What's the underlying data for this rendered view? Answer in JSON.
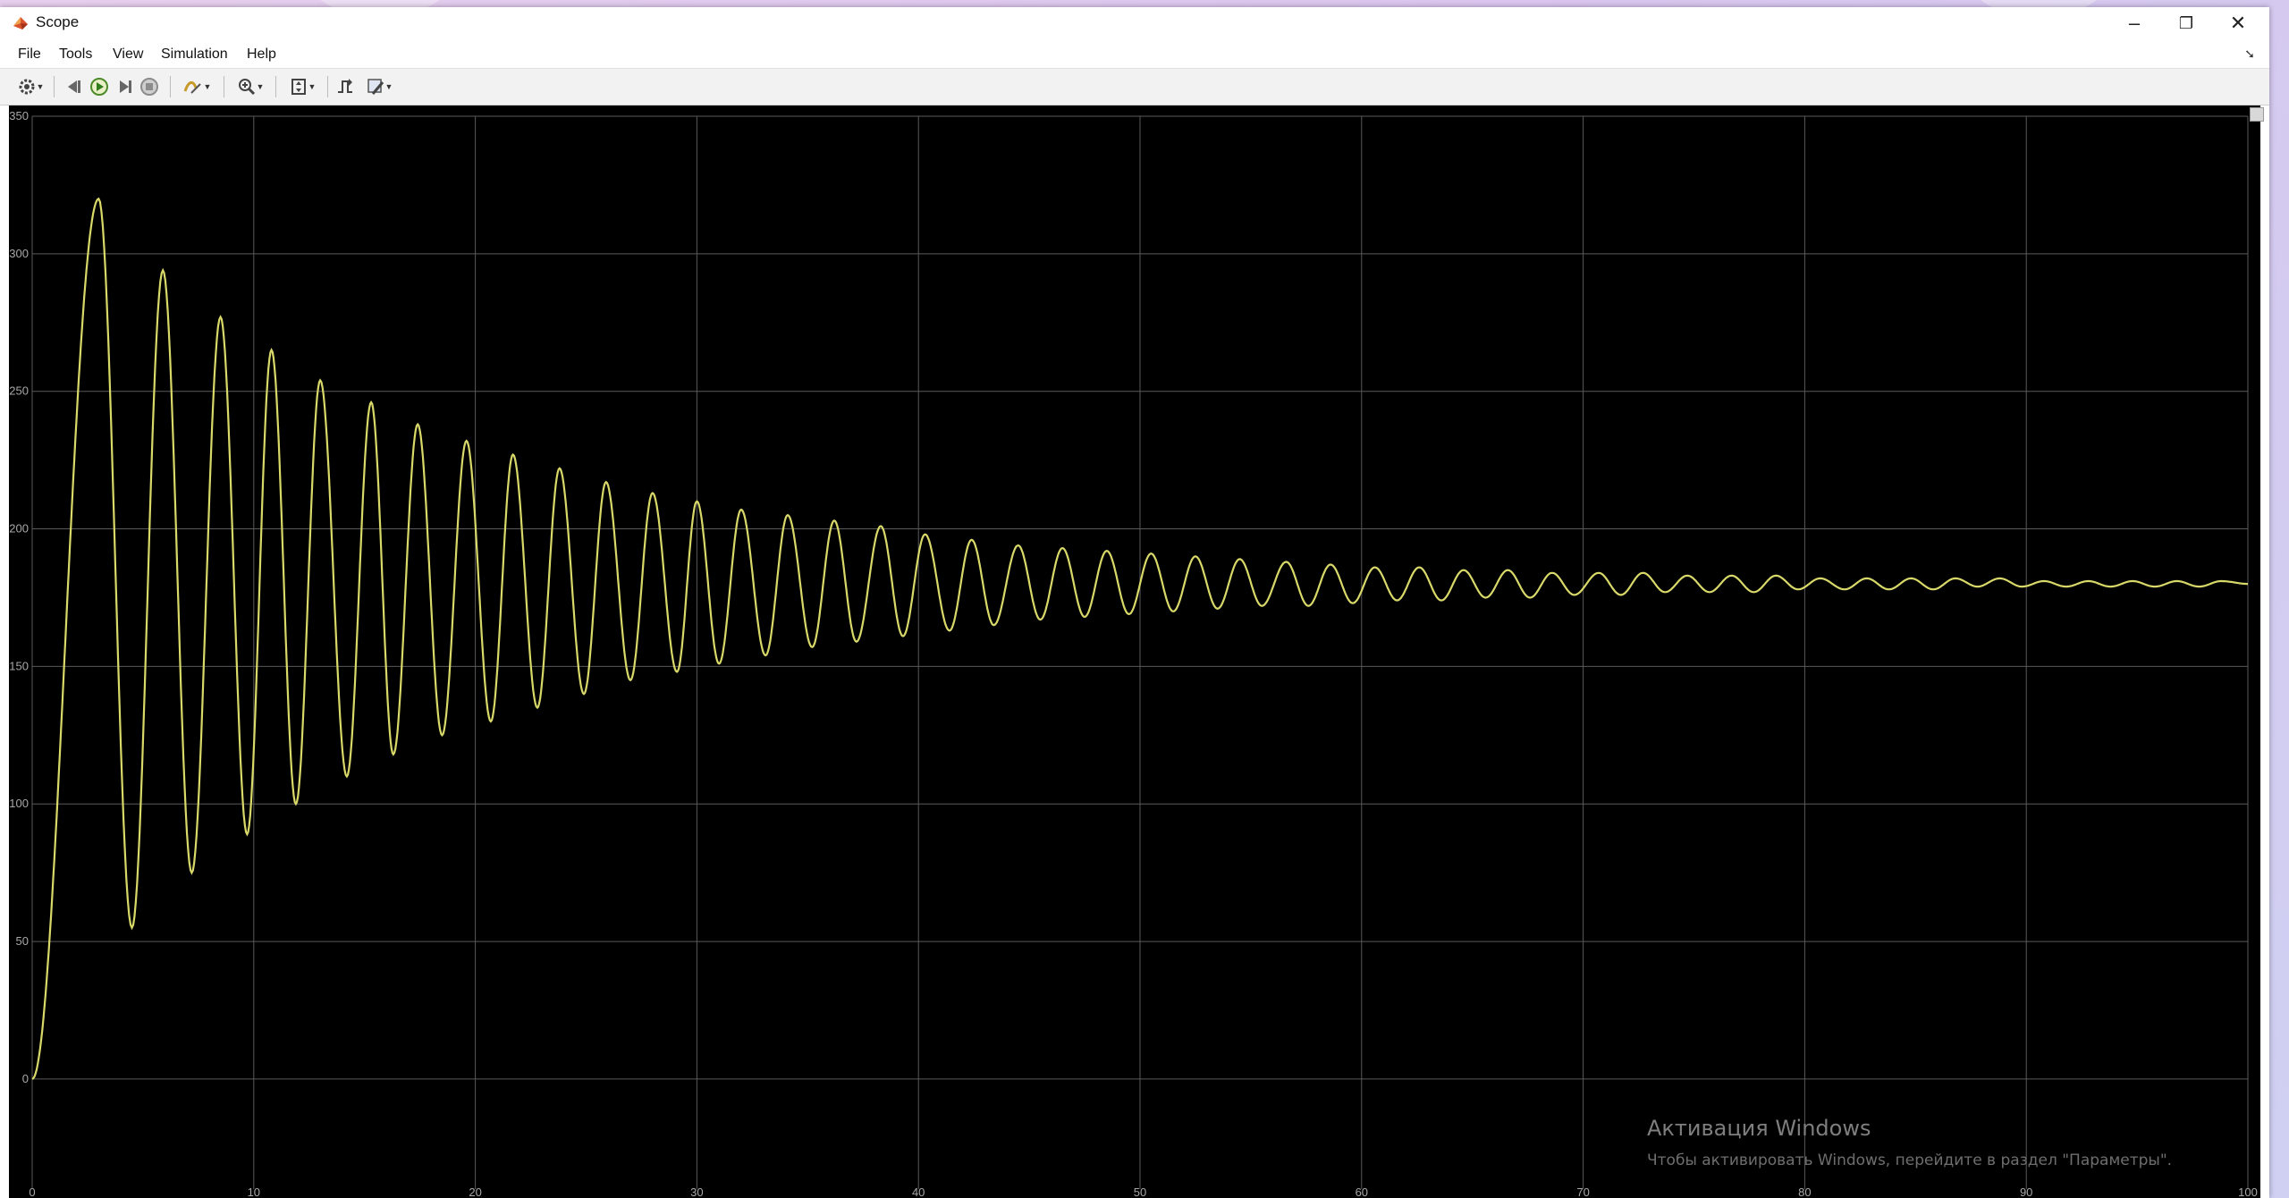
{
  "window": {
    "title": "Scope",
    "controls": {
      "minimize": "–",
      "maximize": "❐",
      "close": "✕"
    }
  },
  "menu": {
    "items": [
      "File",
      "Tools",
      "View",
      "Simulation",
      "Help"
    ],
    "pin_glyph": "➘"
  },
  "toolbar": {
    "buttons": [
      {
        "name": "settings-icon"
      },
      {
        "name": "step-back-icon"
      },
      {
        "name": "run-icon"
      },
      {
        "name": "step-forward-icon"
      },
      {
        "name": "stop-icon"
      },
      {
        "name": "highlight-icon"
      },
      {
        "name": "zoom-icon"
      },
      {
        "name": "scale-axes-icon"
      },
      {
        "name": "triggers-icon"
      },
      {
        "name": "style-icon"
      }
    ]
  },
  "colors": {
    "signal": "#d9d96a",
    "grid": "#5a5a5a",
    "axes_bg": "#000000",
    "tick_label": "#a8a8a8"
  },
  "chart_data": {
    "type": "line",
    "title": "",
    "xlabel": "",
    "ylabel": "",
    "xlim": [
      0,
      100
    ],
    "ylim": [
      -40,
      350
    ],
    "grid": true,
    "x_ticks": [
      0,
      10,
      20,
      30,
      40,
      50,
      60,
      70,
      80,
      90,
      100
    ],
    "y_ticks": [
      0,
      50,
      100,
      150,
      200,
      250,
      300,
      350
    ],
    "series": [
      {
        "name": "",
        "peaks": [
          {
            "t": 3.0,
            "v": 320
          },
          {
            "t": 4.5,
            "v": 55
          },
          {
            "t": 5.9,
            "v": 294
          },
          {
            "t": 7.2,
            "v": 75
          },
          {
            "t": 8.5,
            "v": 277
          },
          {
            "t": 9.7,
            "v": 89
          },
          {
            "t": 10.8,
            "v": 265
          },
          {
            "t": 11.9,
            "v": 100
          },
          {
            "t": 13.0,
            "v": 254
          },
          {
            "t": 14.2,
            "v": 110
          },
          {
            "t": 15.3,
            "v": 246
          },
          {
            "t": 16.3,
            "v": 118
          },
          {
            "t": 17.4,
            "v": 238
          },
          {
            "t": 18.5,
            "v": 125
          },
          {
            "t": 19.6,
            "v": 232
          },
          {
            "t": 20.7,
            "v": 130
          },
          {
            "t": 21.7,
            "v": 227
          },
          {
            "t": 22.8,
            "v": 135
          },
          {
            "t": 23.8,
            "v": 222
          },
          {
            "t": 24.9,
            "v": 140
          },
          {
            "t": 25.9,
            "v": 217
          },
          {
            "t": 27.0,
            "v": 145
          },
          {
            "t": 28.0,
            "v": 213
          },
          {
            "t": 29.1,
            "v": 148
          },
          {
            "t": 30.0,
            "v": 210
          },
          {
            "t": 31.0,
            "v": 151
          },
          {
            "t": 32.0,
            "v": 207
          },
          {
            "t": 33.1,
            "v": 154
          },
          {
            "t": 34.1,
            "v": 205
          },
          {
            "t": 35.2,
            "v": 157
          },
          {
            "t": 36.2,
            "v": 203
          },
          {
            "t": 37.2,
            "v": 159
          },
          {
            "t": 38.3,
            "v": 201
          },
          {
            "t": 39.3,
            "v": 161
          },
          {
            "t": 40.3,
            "v": 198
          },
          {
            "t": 41.4,
            "v": 163
          },
          {
            "t": 42.4,
            "v": 196
          },
          {
            "t": 43.4,
            "v": 165
          },
          {
            "t": 44.5,
            "v": 194
          },
          {
            "t": 45.5,
            "v": 167
          },
          {
            "t": 46.5,
            "v": 193
          },
          {
            "t": 47.5,
            "v": 168
          },
          {
            "t": 48.5,
            "v": 192
          },
          {
            "t": 49.5,
            "v": 169
          },
          {
            "t": 50.5,
            "v": 191
          },
          {
            "t": 51.5,
            "v": 170
          },
          {
            "t": 52.5,
            "v": 190
          },
          {
            "t": 53.5,
            "v": 171
          },
          {
            "t": 54.5,
            "v": 189
          },
          {
            "t": 55.5,
            "v": 172
          },
          {
            "t": 56.6,
            "v": 188
          },
          {
            "t": 57.6,
            "v": 172
          },
          {
            "t": 58.6,
            "v": 187
          },
          {
            "t": 59.6,
            "v": 173
          },
          {
            "t": 60.6,
            "v": 186
          },
          {
            "t": 61.6,
            "v": 174
          },
          {
            "t": 62.6,
            "v": 186
          },
          {
            "t": 63.6,
            "v": 174
          },
          {
            "t": 64.6,
            "v": 185
          },
          {
            "t": 65.6,
            "v": 175
          },
          {
            "t": 66.6,
            "v": 185
          },
          {
            "t": 67.6,
            "v": 175
          },
          {
            "t": 68.6,
            "v": 184
          },
          {
            "t": 69.6,
            "v": 176
          },
          {
            "t": 70.7,
            "v": 184
          },
          {
            "t": 71.7,
            "v": 176
          },
          {
            "t": 72.7,
            "v": 184
          },
          {
            "t": 73.7,
            "v": 177
          },
          {
            "t": 74.7,
            "v": 183
          },
          {
            "t": 75.7,
            "v": 177
          },
          {
            "t": 76.7,
            "v": 183
          },
          {
            "t": 77.7,
            "v": 177
          },
          {
            "t": 78.7,
            "v": 183
          },
          {
            "t": 79.7,
            "v": 178
          },
          {
            "t": 80.7,
            "v": 182
          },
          {
            "t": 81.8,
            "v": 178
          },
          {
            "t": 82.8,
            "v": 182
          },
          {
            "t": 83.8,
            "v": 178
          },
          {
            "t": 84.8,
            "v": 182
          },
          {
            "t": 85.8,
            "v": 178
          },
          {
            "t": 86.8,
            "v": 182
          },
          {
            "t": 87.8,
            "v": 179
          },
          {
            "t": 88.8,
            "v": 182
          },
          {
            "t": 89.8,
            "v": 179
          },
          {
            "t": 90.8,
            "v": 181
          },
          {
            "t": 91.8,
            "v": 179
          },
          {
            "t": 92.8,
            "v": 181
          },
          {
            "t": 93.8,
            "v": 179
          },
          {
            "t": 94.8,
            "v": 181
          },
          {
            "t": 95.8,
            "v": 179
          },
          {
            "t": 96.8,
            "v": 181
          },
          {
            "t": 97.8,
            "v": 179
          },
          {
            "t": 98.8,
            "v": 181
          },
          {
            "t": 100.0,
            "v": 180
          }
        ]
      }
    ]
  },
  "watermark": {
    "title": "Активация Windows",
    "subtitle": "Чтобы активировать Windows, перейдите в раздел \"Параметры\"."
  }
}
